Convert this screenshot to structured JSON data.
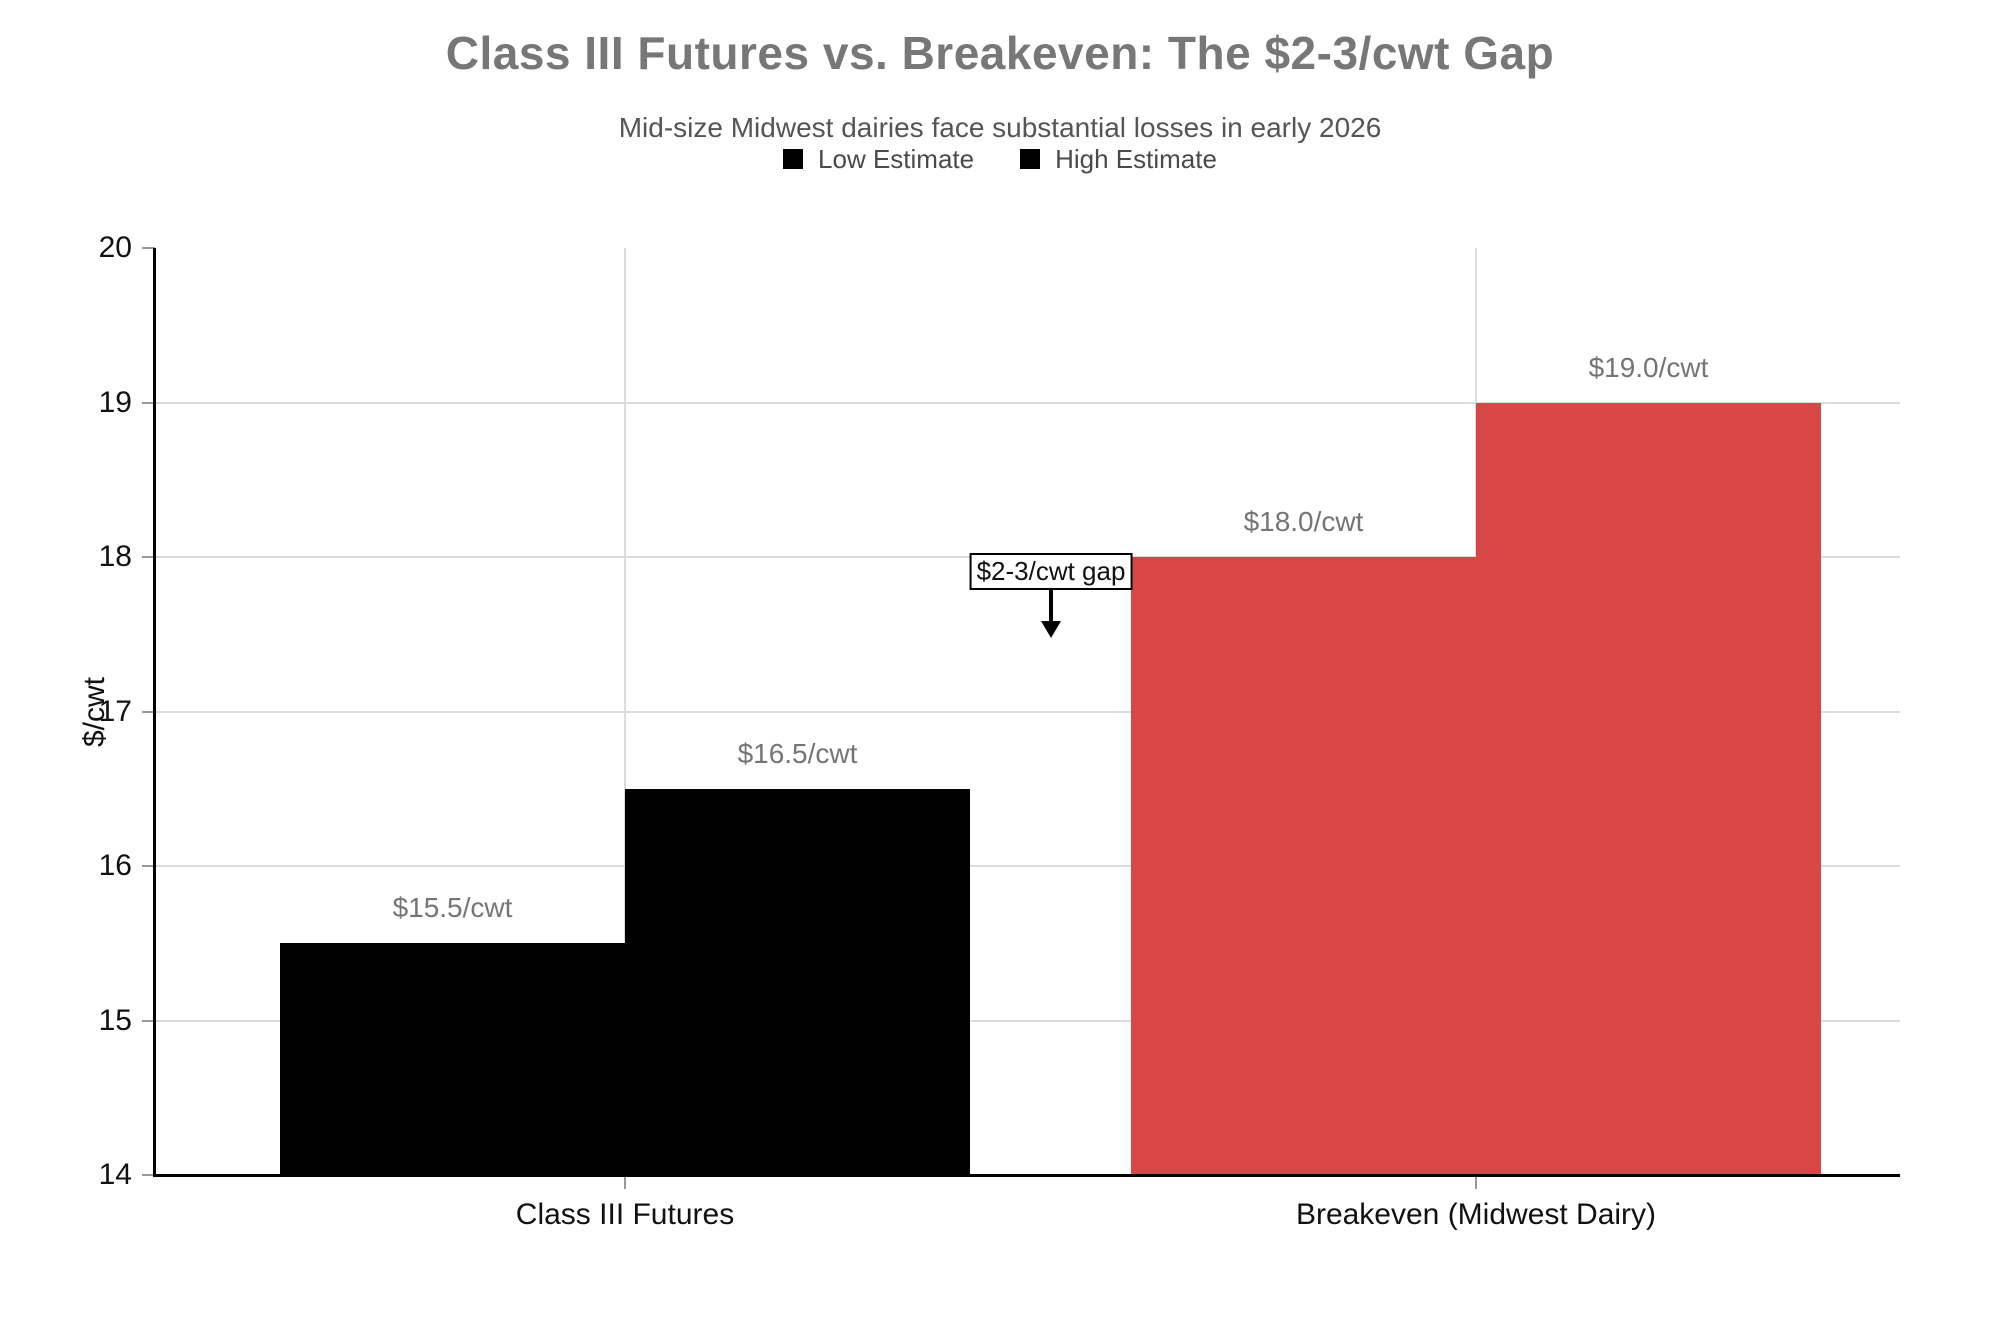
{
  "page": {
    "background": "#ffffff"
  },
  "chart_data": {
    "type": "bar",
    "title": "Class III Futures vs. Breakeven: The $2-3/cwt Gap",
    "subtitle": "Mid-size Midwest dairies face substantial losses in early 2026",
    "ylabel": "$/cwt",
    "ylim": [
      14,
      20
    ],
    "yticks": [
      14,
      15,
      16,
      17,
      18,
      19,
      20
    ],
    "categories": [
      "Class III Futures",
      "Breakeven (Midwest Dairy)"
    ],
    "series": [
      {
        "name": "Low Estimate",
        "values": [
          15.5,
          18.0
        ]
      },
      {
        "name": "High Estimate",
        "values": [
          16.5,
          19.0
        ]
      }
    ],
    "bar_labels": [
      [
        "$15.5/cwt",
        "$16.5/cwt"
      ],
      [
        "$18.0/cwt",
        "$19.0/cwt"
      ]
    ],
    "bar_colors": [
      "#000000",
      "#d94646"
    ],
    "legend": {
      "items": [
        "Low Estimate",
        "High Estimate"
      ],
      "swatch_color": "#000000",
      "position": "top-center"
    },
    "annotation": {
      "text": "$2-3/cwt gap",
      "arrow": "down"
    },
    "grid": true,
    "colors": {
      "grid": "#dcdcdc",
      "axis": "#000000",
      "title": "#777777",
      "subtitle": "#555555",
      "value_label": "#757575",
      "tick_label": "#111111"
    }
  }
}
